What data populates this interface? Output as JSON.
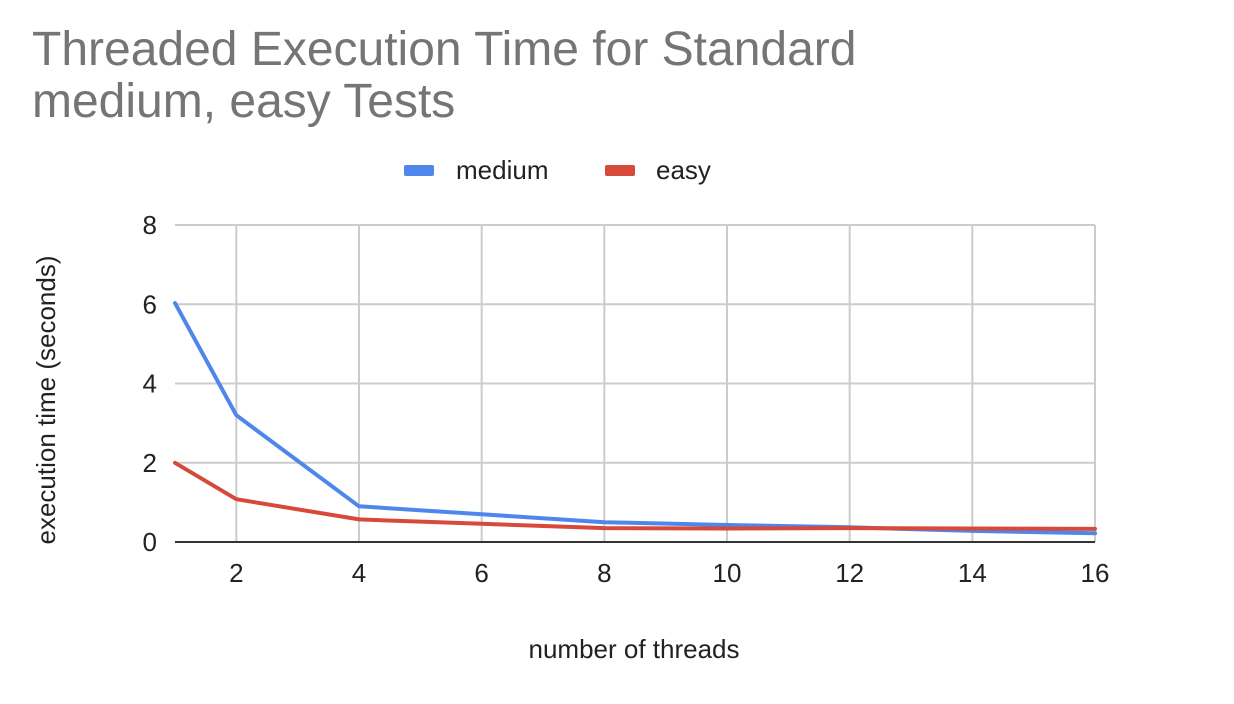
{
  "chart_data": {
    "type": "line",
    "title_lines": [
      "Threaded Execution Time for Standard",
      "medium, easy Tests"
    ],
    "xlabel": "number of threads",
    "ylabel": "execution time (seconds)",
    "xlim": [
      1,
      16
    ],
    "ylim": [
      0,
      8
    ],
    "xticks": [
      2,
      4,
      6,
      8,
      10,
      12,
      14,
      16
    ],
    "yticks": [
      0,
      2,
      4,
      6,
      8
    ],
    "grid": true,
    "legend_position": "top-center",
    "x": [
      1,
      2,
      4,
      6,
      8,
      10,
      12,
      14,
      16
    ],
    "series": [
      {
        "name": "medium",
        "color": "#4f86ec",
        "values": [
          6.03,
          3.2,
          0.9,
          0.7,
          0.5,
          0.43,
          0.37,
          0.28,
          0.22
        ]
      },
      {
        "name": "easy",
        "color": "#d6493b",
        "values": [
          2.0,
          1.08,
          0.57,
          0.46,
          0.35,
          0.34,
          0.35,
          0.34,
          0.33
        ]
      }
    ]
  }
}
